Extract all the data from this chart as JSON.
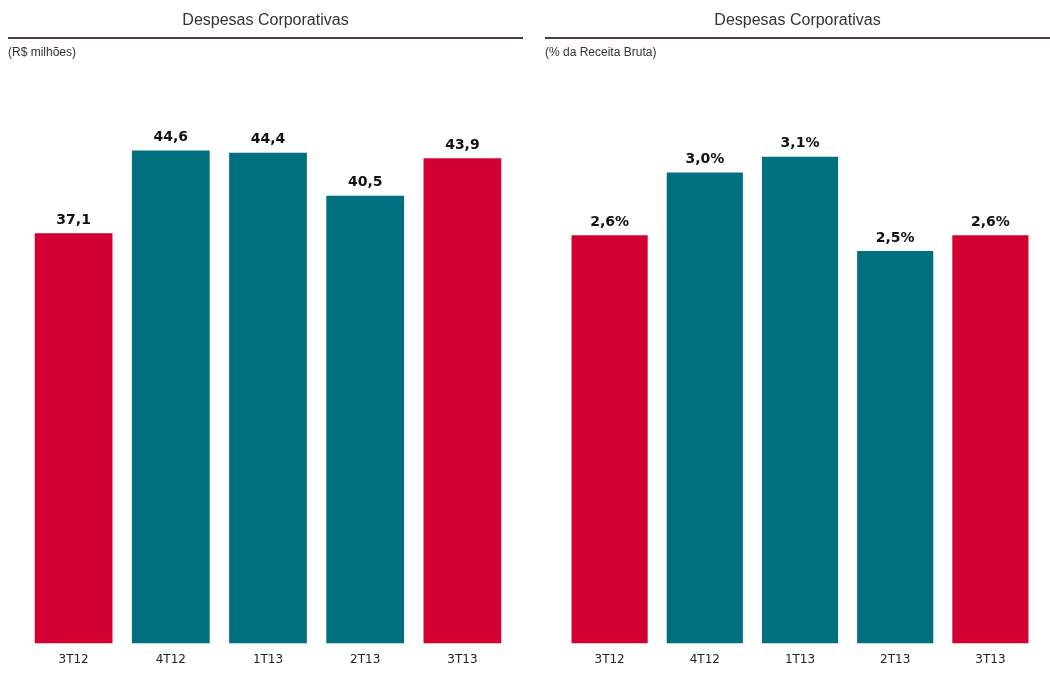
{
  "chart_data": [
    {
      "type": "bar",
      "title": "Despesas Corporativas",
      "subtitle": "(R$ milhões)",
      "categories": [
        "3T12",
        "4T12",
        "1T13",
        "2T13",
        "3T13"
      ],
      "values": [
        37.1,
        44.6,
        44.4,
        40.5,
        43.9
      ],
      "colors": [
        "#d20032",
        "#006f80",
        "#006f80",
        "#006f80",
        "#d20032"
      ],
      "value_labels": [
        "37,1",
        "44,6",
        "44,4",
        "40,5",
        "43,9"
      ],
      "tick_labels": "x",
      "grid": false,
      "legend": false
    },
    {
      "type": "bar",
      "title": "Despesas Corporativas",
      "subtitle": "(% da Receita Bruta)",
      "categories": [
        "3T12",
        "4T12",
        "1T13",
        "2T13",
        "3T13"
      ],
      "values": [
        2.6,
        3.0,
        3.1,
        2.5,
        2.6
      ],
      "colors": [
        "#d20032",
        "#006f80",
        "#006f80",
        "#006f80",
        "#d20032"
      ],
      "value_labels": [
        "2,6%",
        "3,0%",
        "3,1%",
        "2,5%",
        "2,6%"
      ],
      "tick_labels": "x",
      "grid": false,
      "legend": false
    }
  ]
}
